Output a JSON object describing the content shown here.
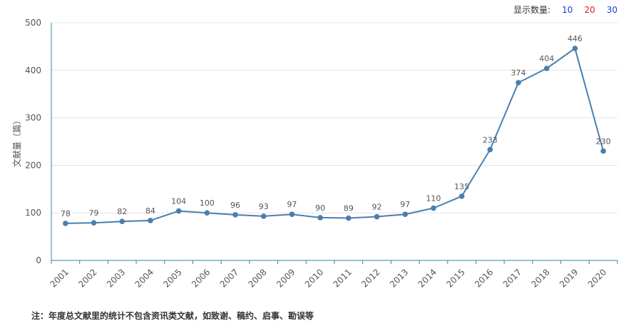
{
  "controls": {
    "count_label": "显示数量:",
    "options": [
      {
        "label": "10",
        "color": "#1a3fd1"
      },
      {
        "label": "20",
        "color": "#e0161c"
      },
      {
        "label": "30",
        "color": "#1a3fd1"
      }
    ]
  },
  "footnote": "注：年度总文献里的统计不包含资讯类文献，如致谢、稿约、启事、勘误等",
  "chart_data": {
    "type": "line",
    "title": "",
    "xlabel": "",
    "ylabel": "文献量（篇）",
    "ylim": [
      0,
      500
    ],
    "yticks": [
      0,
      100,
      200,
      300,
      400,
      500
    ],
    "grid": true,
    "line_color": "#4a7fad",
    "categories": [
      "2001",
      "2002",
      "2003",
      "2004",
      "2005",
      "2006",
      "2007",
      "2008",
      "2009",
      "2010",
      "2011",
      "2012",
      "2013",
      "2014",
      "2015",
      "2016",
      "2017",
      "2018",
      "2019",
      "2020"
    ],
    "values": [
      78,
      79,
      82,
      84,
      104,
      100,
      96,
      93,
      97,
      90,
      89,
      92,
      97,
      110,
      135,
      233,
      374,
      404,
      446,
      230
    ]
  }
}
